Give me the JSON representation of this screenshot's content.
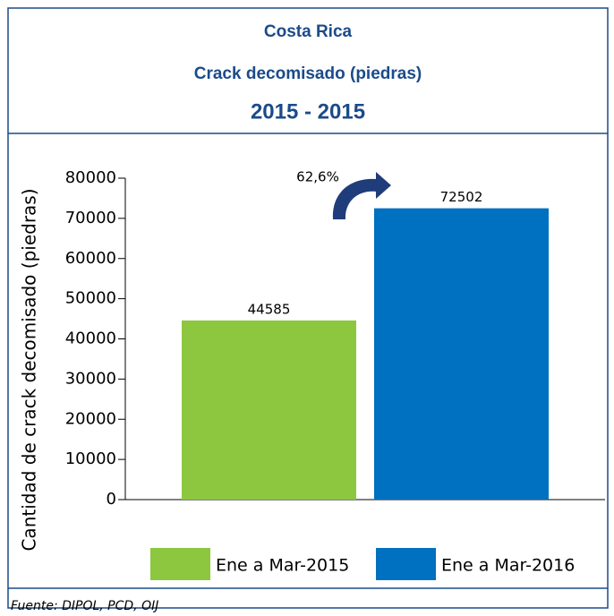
{
  "chart_data": {
    "type": "bar",
    "title": "Costa Rica",
    "subtitle": "Crack decomisado (piedras)",
    "period": "2015 - 2015",
    "ylabel": "Cantidad de crack decomisado (piedras)",
    "annotation": "62,6%",
    "source": "Fuente: DIPOL, PCD, OIJ",
    "categories": [
      null
    ],
    "series": [
      {
        "name": "Ene a Mar-2015",
        "color": "#8dc63f",
        "values": [
          44585
        ]
      },
      {
        "name": "Ene a Mar-2016",
        "color": "#0070c0",
        "values": [
          72502
        ]
      }
    ],
    "ylim": [
      0,
      80000
    ],
    "yticks": [
      0,
      10000,
      20000,
      30000,
      40000,
      50000,
      60000,
      70000,
      80000
    ],
    "grid": false
  }
}
